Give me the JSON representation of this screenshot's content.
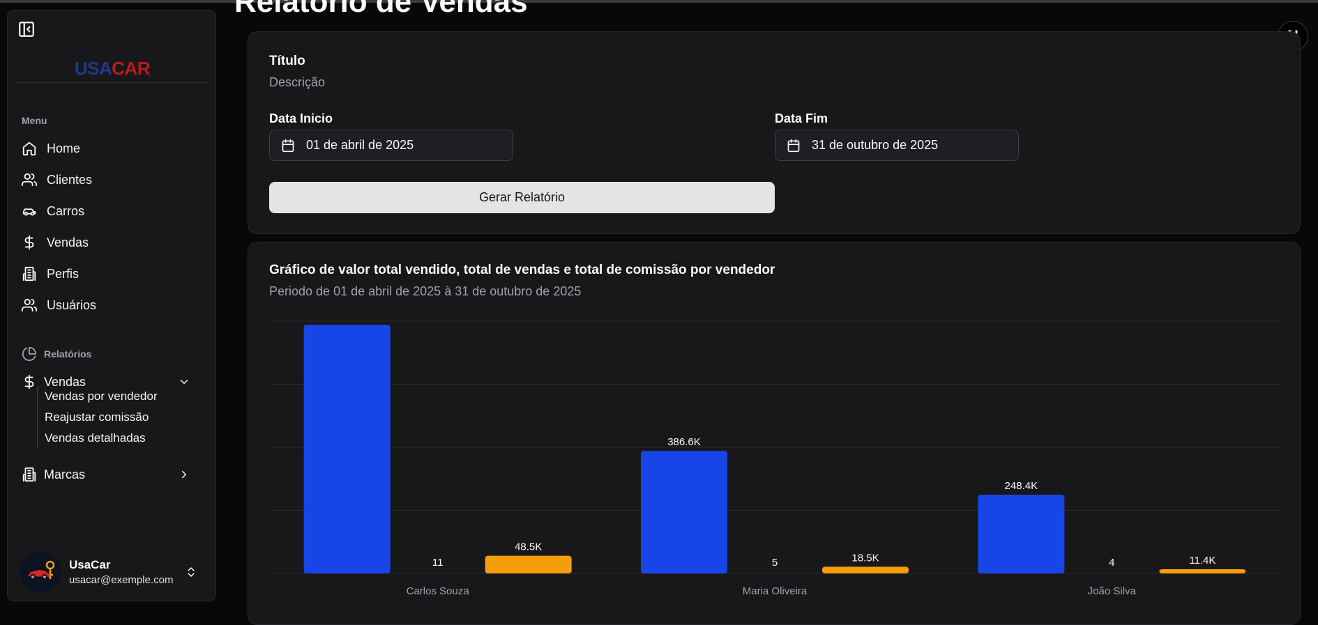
{
  "sidebar": {
    "logo_usa": "USA",
    "logo_car": "CAR",
    "menu_label": "Menu",
    "items": [
      {
        "label": "Home"
      },
      {
        "label": "Clientes"
      },
      {
        "label": "Carros"
      },
      {
        "label": "Vendas"
      },
      {
        "label": "Perfis"
      },
      {
        "label": "Usuários"
      }
    ],
    "reports_label": "Relatórios",
    "reports_vendas": "Vendas",
    "reports_sub": [
      {
        "label": "Vendas por vendedor"
      },
      {
        "label": "Reajustar comissão"
      },
      {
        "label": "Vendas detalhadas"
      }
    ],
    "marcas": "Marcas",
    "user": {
      "name": "UsaCar",
      "email": "usacar@exemple.com"
    }
  },
  "page": {
    "title": "Relatório de Vendas",
    "badge": "N"
  },
  "filter_card": {
    "title": "Título",
    "description": "Descrição",
    "start_label": "Data Inicio",
    "start_value": "01 de abril de 2025",
    "end_label": "Data Fim",
    "end_value": "31 de outubro de 2025",
    "button": "Gerar Relatório"
  },
  "chart_card": {
    "title": "Gráfico de valor total vendido, total de vendas e total de comissão por vendedor",
    "subtitle": "Periodo de 01 de abril de 2025 à 31 de outubro de 2025"
  },
  "chart_data": {
    "type": "bar",
    "title": "Gráfico de valor total vendido, total de vendas e total de comissão por vendedor",
    "subtitle": "Periodo de 01 de abril de 2025 à 31 de outubro de 2025",
    "categories": [
      "Carlos Souza",
      "Maria Oliveira",
      "João Silva"
    ],
    "series": [
      {
        "values": [
          785000,
          386600,
          248400
        ],
        "labels": [
          "",
          "386.6K",
          "248.4K"
        ],
        "color": "#1845e8"
      },
      {
        "values": [
          11,
          5,
          4
        ],
        "labels": [
          "11",
          "5",
          "4"
        ],
        "color": "#f5a10c"
      },
      {
        "values": [
          48500,
          18500,
          11400
        ],
        "labels": [
          "48.5K",
          "18.5K",
          "11.4K"
        ],
        "color": "#f59e0b"
      }
    ],
    "ylim": [
      0,
      800000
    ],
    "grid": true,
    "legend": "none"
  },
  "colors": {
    "background": "#08080a",
    "card": "#18181b",
    "bar_blue": "#1845e8",
    "bar_orange": "#f59e0b",
    "button": "#e4e4e7"
  }
}
